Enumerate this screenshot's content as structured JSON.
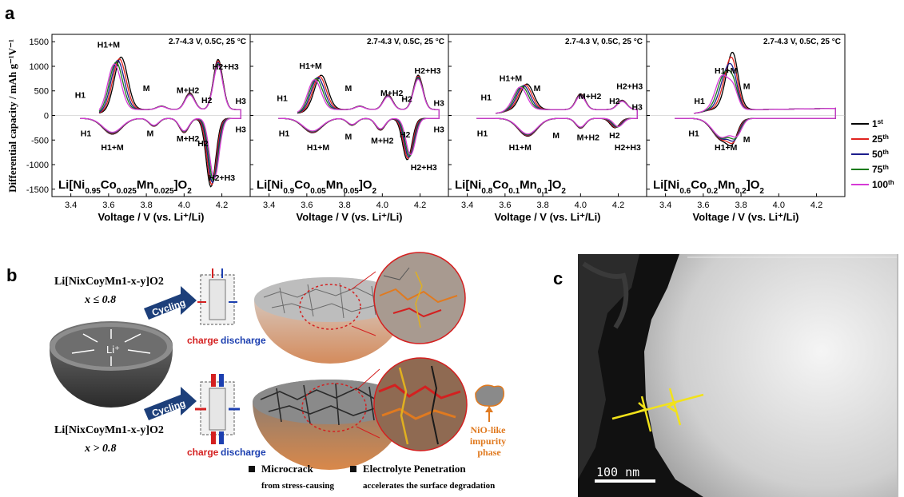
{
  "panel_labels": {
    "a": "a",
    "b": "b",
    "c": "c"
  },
  "chart_data": {
    "type": "line",
    "ylabel": "Differential capacity / mAh g⁻¹V⁻¹",
    "xlabel": "Voltage / V (vs. Li⁺/Li)",
    "xlim": [
      3.3,
      4.35
    ],
    "ylim": [
      -1650,
      1650
    ],
    "xticks": [
      3.4,
      3.6,
      3.8,
      4.0,
      4.2
    ],
    "xtick_labels": [
      "3.4",
      "3.6",
      "3.8",
      "4.0",
      "4.2"
    ],
    "yticks": [
      -1500,
      -1000,
      -500,
      0,
      500,
      1000,
      1500
    ],
    "ytick_labels": [
      "-1500",
      "-1000",
      "-500",
      "0",
      "500",
      "1000",
      "1500"
    ],
    "grid": false,
    "legend_placement": "right",
    "series_legend": [
      {
        "name": "1st",
        "color": "#000000"
      },
      {
        "name": "25th",
        "color": "#e0231f"
      },
      {
        "name": "50th",
        "color": "#1c1d8c"
      },
      {
        "name": "75th",
        "color": "#1a7a1a"
      },
      {
        "name": "100th",
        "color": "#d63ad6"
      }
    ],
    "panels": [
      {
        "condition": "2.7-4.3 V, 0.5C, 25 °C",
        "composition": "Li[Ni0.95Co0.025Mn0.025]O2",
        "annotations": [
          "H1+M",
          "H1",
          "M",
          "M+H2",
          "H2",
          "H2+H3",
          "H3",
          "H1",
          "H1+M",
          "M",
          "M+H2",
          "H2",
          "H3",
          "H2+H3"
        ],
        "charge_peaks": [
          [
            3.63,
            1150
          ],
          [
            3.88,
            150
          ],
          [
            4.03,
            420
          ],
          [
            4.18,
            1100
          ]
        ],
        "discharge_peaks": [
          [
            3.62,
            -380
          ],
          [
            3.84,
            -220
          ],
          [
            4.0,
            -350
          ],
          [
            4.16,
            -1450
          ]
        ]
      },
      {
        "condition": "2.7-4.3 V, 0.5C, 25 °C",
        "composition": "Li[Ni0.9Co0.05Mn0.05]O2",
        "annotations": [
          "H1+M",
          "H1",
          "M",
          "M+H2",
          "H2",
          "H2+H3",
          "H3",
          "H1",
          "H1+M",
          "M",
          "M+H2",
          "H2",
          "H3",
          "H2+H3"
        ],
        "charge_peaks": [
          [
            3.64,
            780
          ],
          [
            3.88,
            150
          ],
          [
            4.03,
            380
          ],
          [
            4.19,
            780
          ]
        ],
        "discharge_peaks": [
          [
            3.63,
            -350
          ],
          [
            3.84,
            -200
          ],
          [
            3.99,
            -300
          ],
          [
            4.15,
            -900
          ]
        ]
      },
      {
        "condition": "2.7-4.3 V, 0.5C, 25 °C",
        "composition": "Li[Ni0.8Co0.1Mn0.1]O2",
        "annotations": [
          "H1+M",
          "H1",
          "M",
          "M+H2",
          "H2",
          "H2+H3",
          "H3",
          "H1",
          "H1+M",
          "M",
          "M+H2",
          "H2",
          "H2+H3"
        ],
        "charge_peaks": [
          [
            3.68,
            600
          ],
          [
            4.0,
            400
          ],
          [
            4.22,
            270
          ]
        ],
        "discharge_peaks": [
          [
            3.72,
            -420
          ],
          [
            4.0,
            -260
          ],
          [
            4.2,
            -250
          ]
        ]
      },
      {
        "condition": "2.7-4.3 V, 0.5C, 25 °C",
        "composition": "Li[Ni0.6Co0.2Mn0.2]O2",
        "annotations": [
          "H1+M",
          "M",
          "H1",
          "H1",
          "H1+M",
          "M"
        ],
        "charge_peaks": [
          [
            3.7,
            850
          ],
          [
            3.76,
            500
          ]
        ],
        "discharge_peaks": [
          [
            3.7,
            -500
          ],
          [
            3.78,
            -350
          ]
        ]
      }
    ]
  },
  "schematic": {
    "top_formula": "Li[NixCoyMn1-x-y]O2",
    "top_condition": "x ≤ 0.8",
    "bottom_formula": "Li[NixCoyMn1-x-y]O2",
    "bottom_condition": "x > 0.8",
    "cycling_label": "Cycling",
    "li_label": "Li⁺",
    "charge_label": "charge",
    "discharge_label": "discharge",
    "impurity_label": "NiO-like impurity phase",
    "bullet1_title": "Microcrack",
    "bullet1_sub": "from stress-causing",
    "bullet2_title": "Electrolyte Penetration",
    "bullet2_sub": "accelerates the surface degradation",
    "colors": {
      "arrow": "#1d3f7a",
      "charge": "#d42020",
      "discharge": "#1c3fb0",
      "impurity": "#e07a20"
    }
  },
  "tem": {
    "scale_bar": "100 nm",
    "marker_color": "#f2e21a"
  }
}
